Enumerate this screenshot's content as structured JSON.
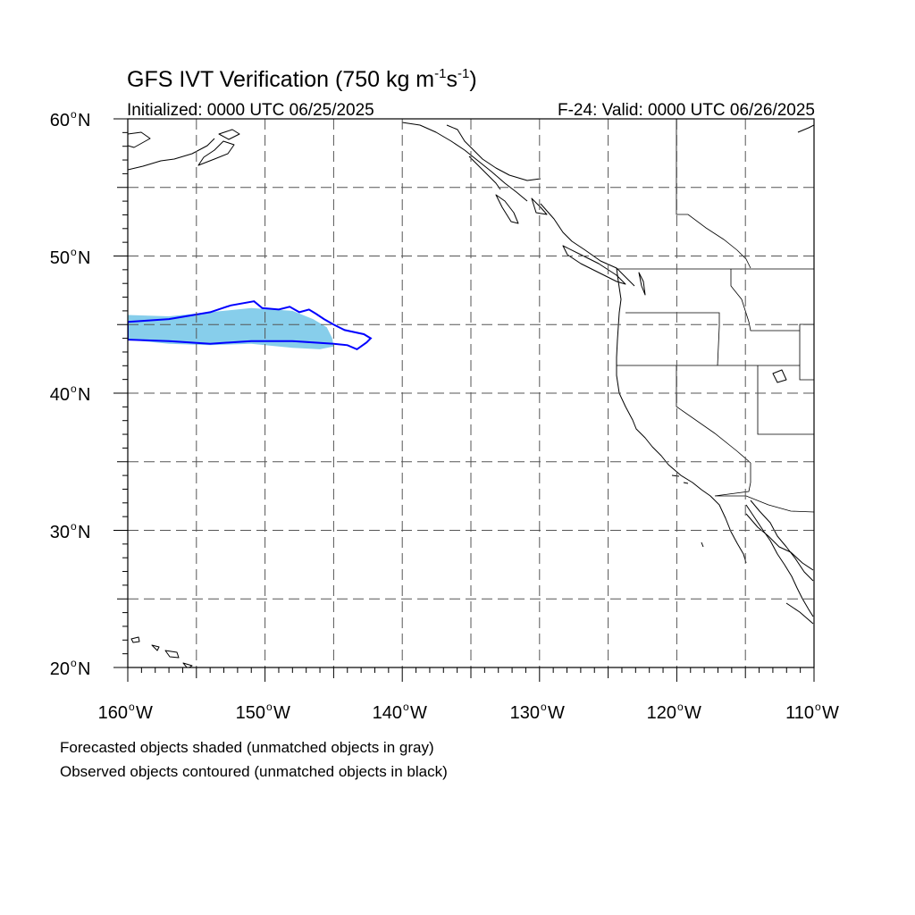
{
  "title_main": "GFS IVT Verification (750 kg m",
  "title_sup1": "-1",
  "title_mid": "s",
  "title_sup2": "-1",
  "title_end": ")",
  "init_label": "Initialized: 0000 UTC 06/25/2025",
  "valid_label": "F-24: Valid: 0000 UTC 06/26/2025",
  "lat_labels": [
    "60",
    "50",
    "40",
    "30",
    "20"
  ],
  "lat_suffix": "N",
  "lon_labels": [
    "160",
    "150",
    "140",
    "130",
    "120",
    "110"
  ],
  "lon_suffix": "W",
  "degree_symbol": "o",
  "notes": [
    "Forecasted objects shaded (unmatched objects in gray)",
    "Observed objects contoured (unmatched objects in black)"
  ],
  "colors": {
    "forecast_fill": "#87ceeb",
    "observed_contour": "#0000ff",
    "grid": "#555555",
    "coast": "#000000"
  },
  "map": {
    "lon_range": [
      -160,
      -110
    ],
    "lat_range": [
      20,
      60
    ],
    "grid_lon_step": 5,
    "grid_lat_step": 5,
    "grid_style": "dashed"
  },
  "forecast_object": {
    "type": "matched",
    "boundary": [
      [
        -160,
        45.7
      ],
      [
        -157,
        45.6
      ],
      [
        -154,
        45.9
      ],
      [
        -151,
        46.2
      ],
      [
        -148,
        46.0
      ],
      [
        -146.5,
        45.4
      ],
      [
        -145.5,
        44.8
      ],
      [
        -145.1,
        44.0
      ],
      [
        -145.0,
        43.4
      ],
      [
        -146,
        43.2
      ],
      [
        -148,
        43.3
      ],
      [
        -151,
        43.6
      ],
      [
        -154,
        43.5
      ],
      [
        -157,
        43.6
      ],
      [
        -160,
        43.9
      ]
    ]
  },
  "observed_object": {
    "type": "matched",
    "boundary": [
      [
        -160,
        45.2
      ],
      [
        -157,
        45.4
      ],
      [
        -154,
        45.9
      ],
      [
        -152.5,
        46.4
      ],
      [
        -150.8,
        46.7
      ],
      [
        -150.2,
        46.2
      ],
      [
        -149,
        46.1
      ],
      [
        -148.2,
        46.3
      ],
      [
        -147.5,
        45.9
      ],
      [
        -146.8,
        46.1
      ],
      [
        -146.3,
        45.8
      ],
      [
        -145.7,
        45.4
      ],
      [
        -145.0,
        45.0
      ],
      [
        -144.2,
        44.6
      ],
      [
        -142.8,
        44.3
      ],
      [
        -142.3,
        44.0
      ],
      [
        -142.6,
        43.7
      ],
      [
        -143.3,
        43.2
      ],
      [
        -144.0,
        43.5
      ],
      [
        -145,
        43.6
      ],
      [
        -148,
        43.8
      ],
      [
        -151,
        43.8
      ],
      [
        -154,
        43.6
      ],
      [
        -157,
        43.8
      ],
      [
        -160,
        43.9
      ],
      [
        -160,
        45.2
      ]
    ]
  }
}
